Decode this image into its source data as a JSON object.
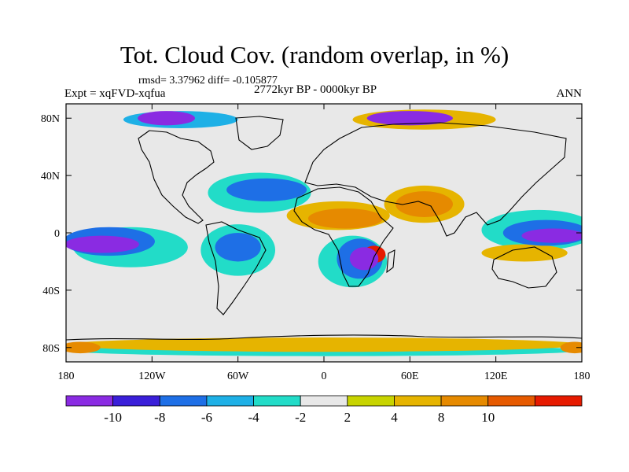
{
  "title": "Tot. Cloud Cov. (random overlap, in %)",
  "stats": "rmsd= 3.37962 diff= -0.105877",
  "expt": "Expt = xqFVD-xqfua",
  "period": "2772kyr BP - 0000kyr BP",
  "season": "ANN",
  "lon_ticks": [
    "180",
    "120W",
    "60W",
    "0",
    "60E",
    "120E",
    "180"
  ],
  "lat_ticks": [
    "80N",
    "40N",
    "0",
    "40S",
    "80S"
  ],
  "colorbar": {
    "colors": [
      "#8a2be2",
      "#3a1fd9",
      "#1e6fe6",
      "#1eb0e6",
      "#22dcc8",
      "#e8e8e8",
      "#c8d400",
      "#e6b400",
      "#e68a00",
      "#e65a00",
      "#e61a00"
    ],
    "labels": [
      "-10",
      "-8",
      "-6",
      "-4",
      "-2",
      "2",
      "4",
      "8",
      "10"
    ]
  },
  "map_data": {
    "lat_range": [
      -90,
      90
    ],
    "lon_range": [
      -180,
      180
    ],
    "anomalies": [
      {
        "lon": -155,
        "lat": -8,
        "rx": 26,
        "ry": 6,
        "value": -10
      },
      {
        "lon": -150,
        "lat": -6,
        "rx": 32,
        "ry": 10,
        "value": -6
      },
      {
        "lon": -135,
        "lat": -10,
        "rx": 40,
        "ry": 14,
        "value": -2
      },
      {
        "lon": 160,
        "lat": -2,
        "rx": 22,
        "ry": 5,
        "value": -10
      },
      {
        "lon": 155,
        "lat": 0,
        "rx": 30,
        "ry": 9,
        "value": -6
      },
      {
        "lon": 150,
        "lat": 2,
        "rx": 40,
        "ry": 14,
        "value": -2
      },
      {
        "lon": 140,
        "lat": -14,
        "rx": 30,
        "ry": 6,
        "value": 4
      },
      {
        "lon": 15,
        "lat": 10,
        "rx": 26,
        "ry": 7,
        "value": 8
      },
      {
        "lon": 10,
        "lat": 12,
        "rx": 36,
        "ry": 10,
        "value": 4
      },
      {
        "lon": 35,
        "lat": -15,
        "rx": 8,
        "ry": 6,
        "value": 10
      },
      {
        "lon": 28,
        "lat": -18,
        "rx": 10,
        "ry": 8,
        "value": -10
      },
      {
        "lon": 25,
        "lat": -18,
        "rx": 16,
        "ry": 14,
        "value": -6
      },
      {
        "lon": 20,
        "lat": -20,
        "rx": 24,
        "ry": 18,
        "value": -2
      },
      {
        "lon": -40,
        "lat": 30,
        "rx": 28,
        "ry": 8,
        "value": -6
      },
      {
        "lon": -45,
        "lat": 28,
        "rx": 36,
        "ry": 14,
        "value": -2
      },
      {
        "lon": -60,
        "lat": -10,
        "rx": 16,
        "ry": 10,
        "value": -6
      },
      {
        "lon": -60,
        "lat": -12,
        "rx": 26,
        "ry": 18,
        "value": -2
      },
      {
        "lon": 70,
        "lat": 20,
        "rx": 20,
        "ry": 9,
        "value": 8
      },
      {
        "lon": 70,
        "lat": 20,
        "rx": 28,
        "ry": 13,
        "value": 4
      },
      {
        "lon": -110,
        "lat": 80,
        "rx": 20,
        "ry": 5,
        "value": -10
      },
      {
        "lon": -100,
        "lat": 79,
        "rx": 40,
        "ry": 6,
        "value": -4
      },
      {
        "lon": 60,
        "lat": 80,
        "rx": 30,
        "ry": 5,
        "value": -10
      },
      {
        "lon": 70,
        "lat": 79,
        "rx": 50,
        "ry": 7,
        "value": 4
      },
      {
        "lon": 0,
        "lat": -78,
        "rx": 180,
        "ry": 5,
        "value": 4
      },
      {
        "lon": 0,
        "lat": -82,
        "rx": 180,
        "ry": 4,
        "value": -2
      },
      {
        "lon": -170,
        "lat": -80,
        "rx": 14,
        "ry": 4,
        "value": 8
      },
      {
        "lon": 175,
        "lat": -80,
        "rx": 10,
        "ry": 4,
        "value": 8
      }
    ]
  }
}
